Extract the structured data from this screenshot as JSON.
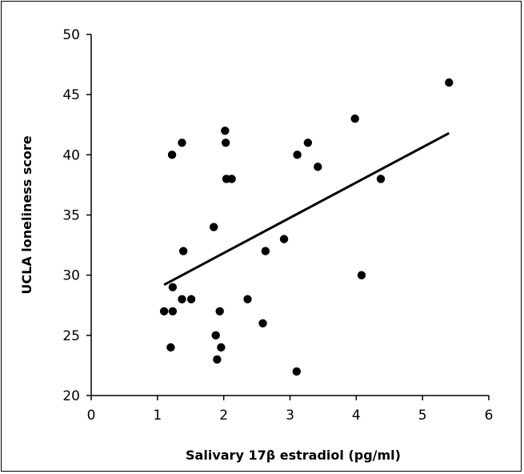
{
  "chart_data": {
    "type": "scatter",
    "title": "",
    "xlabel": "Salivary 17β estradiol (pg/ml)",
    "ylabel": "UCLA loneliness score",
    "xlim": [
      0,
      6
    ],
    "ylim": [
      20,
      50
    ],
    "x_ticks": [
      "0",
      "1",
      "2",
      "3",
      "4",
      "5",
      "6"
    ],
    "y_ticks": [
      "20",
      "25",
      "30",
      "35",
      "40",
      "45",
      "50"
    ],
    "grid": false,
    "legend": "none",
    "point_color": "#000000",
    "points": [
      {
        "x": 1.1,
        "y": 27
      },
      {
        "x": 1.2,
        "y": 24
      },
      {
        "x": 1.22,
        "y": 40
      },
      {
        "x": 1.23,
        "y": 29
      },
      {
        "x": 1.23,
        "y": 27
      },
      {
        "x": 1.37,
        "y": 28
      },
      {
        "x": 1.37,
        "y": 41
      },
      {
        "x": 1.39,
        "y": 32
      },
      {
        "x": 1.51,
        "y": 28
      },
      {
        "x": 1.85,
        "y": 34
      },
      {
        "x": 1.88,
        "y": 25
      },
      {
        "x": 1.9,
        "y": 23
      },
      {
        "x": 1.94,
        "y": 27
      },
      {
        "x": 1.96,
        "y": 24
      },
      {
        "x": 2.02,
        "y": 42
      },
      {
        "x": 2.03,
        "y": 41
      },
      {
        "x": 2.04,
        "y": 38
      },
      {
        "x": 2.12,
        "y": 38
      },
      {
        "x": 2.36,
        "y": 28
      },
      {
        "x": 2.59,
        "y": 26
      },
      {
        "x": 2.63,
        "y": 32
      },
      {
        "x": 2.91,
        "y": 33
      },
      {
        "x": 3.1,
        "y": 22
      },
      {
        "x": 3.11,
        "y": 40
      },
      {
        "x": 3.27,
        "y": 41
      },
      {
        "x": 3.42,
        "y": 39
      },
      {
        "x": 3.98,
        "y": 43
      },
      {
        "x": 4.08,
        "y": 30
      },
      {
        "x": 4.37,
        "y": 38
      },
      {
        "x": 5.4,
        "y": 46
      }
    ],
    "trendline": {
      "x": [
        1.1,
        5.4
      ],
      "y": [
        29.2,
        41.8
      ]
    }
  }
}
